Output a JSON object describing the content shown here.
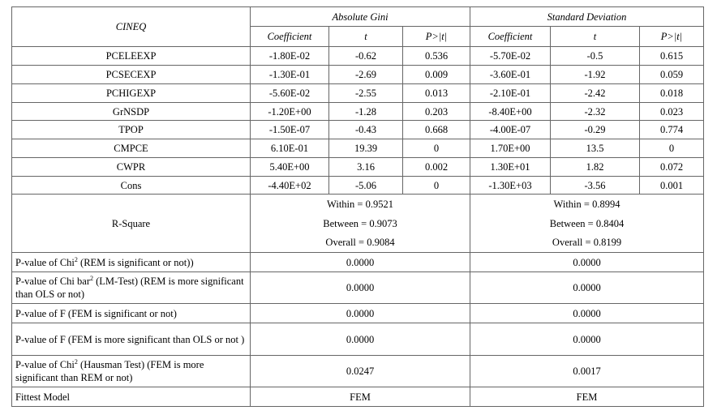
{
  "header": {
    "corner": "CINEQ",
    "group1": "Absolute Gini",
    "group2": "Standard Deviation",
    "subcols": [
      "Coefficient",
      "t",
      "P>|t|",
      "Coefficient",
      "t",
      "P>|t|"
    ]
  },
  "coef_rows": [
    {
      "label": "PCELEEXP",
      "g_coef": "-1.80E-02",
      "g_t": "-0.62",
      "g_p": "0.536",
      "s_coef": "-5.70E-02",
      "s_t": "-0.5",
      "s_p": "0.615"
    },
    {
      "label": "PCSECEXP",
      "g_coef": "-1.30E-01",
      "g_t": "-2.69",
      "g_p": "0.009",
      "s_coef": "-3.60E-01",
      "s_t": "-1.92",
      "s_p": "0.059"
    },
    {
      "label": "PCHIGEXP",
      "g_coef": "-5.60E-02",
      "g_t": "-2.55",
      "g_p": "0.013",
      "s_coef": "-2.10E-01",
      "s_t": "-2.42",
      "s_p": "0.018"
    },
    {
      "label": "GrNSDP",
      "g_coef": "-1.20E+00",
      "g_t": "-1.28",
      "g_p": "0.203",
      "s_coef": "-8.40E+00",
      "s_t": "-2.32",
      "s_p": "0.023"
    },
    {
      "label": "TPOP",
      "g_coef": "-1.50E-07",
      "g_t": "-0.43",
      "g_p": "0.668",
      "s_coef": "-4.00E-07",
      "s_t": "-0.29",
      "s_p": "0.774"
    },
    {
      "label": "CMPCE",
      "g_coef": "6.10E-01",
      "g_t": "19.39",
      "g_p": "0",
      "s_coef": "1.70E+00",
      "s_t": "13.5",
      "s_p": "0"
    },
    {
      "label": "CWPR",
      "g_coef": "5.40E+00",
      "g_t": "3.16",
      "g_p": "0.002",
      "s_coef": "1.30E+01",
      "s_t": "1.82",
      "s_p": "0.072"
    },
    {
      "label": "Cons",
      "g_coef": "-4.40E+02",
      "g_t": "-5.06",
      "g_p": "0",
      "s_coef": "-1.30E+03",
      "s_t": "-3.56",
      "s_p": "0.001"
    }
  ],
  "rsquare": {
    "label": "R-Square",
    "gini": [
      "Within = 0.9521",
      "Between = 0.9073",
      "Overall = 0.9084"
    ],
    "sd": [
      "Within = 0.8994",
      "Between = 0.8404",
      "Overall = 0.8199"
    ]
  },
  "tests": [
    {
      "label_a": "P-value of Chi",
      "sup": "2",
      "label_b": " (REM is significant or not))",
      "gini": "0.0000",
      "sd": "0.0000"
    },
    {
      "label_a": "P-value of Chi bar",
      "sup": "2",
      "label_b": " (LM-Test) (REM is more significant than OLS or not)",
      "gini": "0.0000",
      "sd": "0.0000"
    },
    {
      "label_a": "P-value of F (FEM is significant or not)",
      "sup": "",
      "label_b": "",
      "gini": "0.0000",
      "sd": "0.0000"
    },
    {
      "label_a": "P-value of F (FEM is more significant than OLS or not )",
      "sup": "",
      "label_b": "",
      "gini": "0.0000",
      "sd": "0.0000"
    },
    {
      "label_a": "P-value of Chi",
      "sup": "2",
      "label_b": " (Hausman Test) (FEM is more significant than REM or not)",
      "gini": "0.0247",
      "sd": "0.0017"
    }
  ],
  "fittest": {
    "label": "Fittest Model",
    "gini": "FEM",
    "sd": "FEM"
  }
}
